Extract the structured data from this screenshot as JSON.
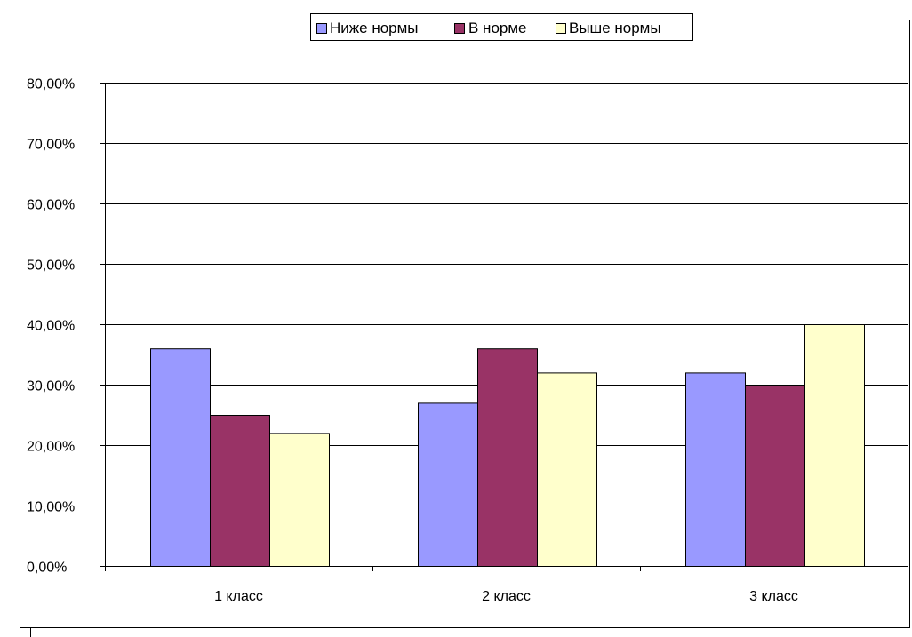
{
  "chart_data": {
    "type": "bar",
    "categories": [
      "1 класс",
      "2 класс",
      "3 класс"
    ],
    "series": [
      {
        "name": "Ниже нормы",
        "color": "#9999ff",
        "values": [
          36,
          27,
          32
        ]
      },
      {
        "name": "В норме",
        "color": "#993366",
        "values": [
          25,
          36,
          30
        ]
      },
      {
        "name": "Выше нормы",
        "color": "#ffffcc",
        "values": [
          22,
          32,
          40
        ]
      }
    ],
    "yticks": [
      "0,00%",
      "10,00%",
      "20,00%",
      "30,00%",
      "40,00%",
      "50,00%",
      "60,00%",
      "70,00%",
      "80,00%"
    ],
    "ylim": [
      0,
      80
    ],
    "grid": true,
    "legend": "top-center"
  }
}
